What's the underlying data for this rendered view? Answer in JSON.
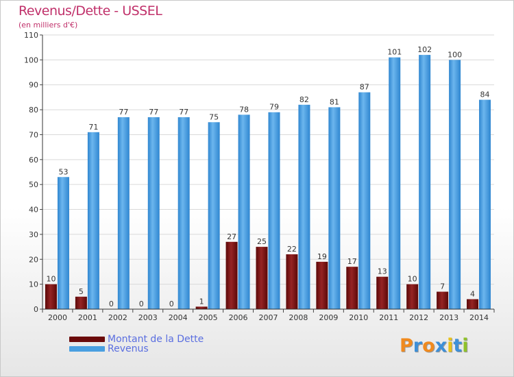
{
  "header": {
    "title": "Revenus/Dette - USSEL",
    "subtitle": "(en milliers d'€)"
  },
  "chart_data": {
    "type": "bar",
    "categories": [
      "2000",
      "2001",
      "2002",
      "2003",
      "2004",
      "2005",
      "2006",
      "2007",
      "2008",
      "2009",
      "2010",
      "2011",
      "2012",
      "2013",
      "2014"
    ],
    "series": [
      {
        "name": "Montant de la Dette",
        "color": "#7a1212",
        "values": [
          10,
          5,
          0,
          0,
          0,
          1,
          27,
          25,
          22,
          19,
          17,
          13,
          10,
          7,
          4
        ]
      },
      {
        "name": "Revenus",
        "color": "#4a9fe0",
        "values": [
          53,
          71,
          77,
          77,
          77,
          75,
          78,
          79,
          82,
          81,
          87,
          101,
          102,
          100,
          84
        ]
      }
    ],
    "ylim": [
      0,
      110
    ],
    "yticks": [
      0,
      10,
      20,
      30,
      40,
      50,
      60,
      70,
      80,
      90,
      100,
      110
    ],
    "grid": true,
    "legend": "bottom-left"
  },
  "legend": {
    "items": [
      {
        "label": "Montant de la Dette",
        "color": "#6a0a0a"
      },
      {
        "label": "Revenus",
        "color": "#4a9fe0"
      }
    ]
  },
  "logo": {
    "letters": [
      "P",
      "r",
      "o",
      "x",
      "i",
      "t",
      "i"
    ],
    "colors": [
      "#f08a1e",
      "#3d8fd8",
      "#f08a1e",
      "#3d8fd8",
      "#e8c21a",
      "#3d8fd8",
      "#8fc22a"
    ]
  }
}
